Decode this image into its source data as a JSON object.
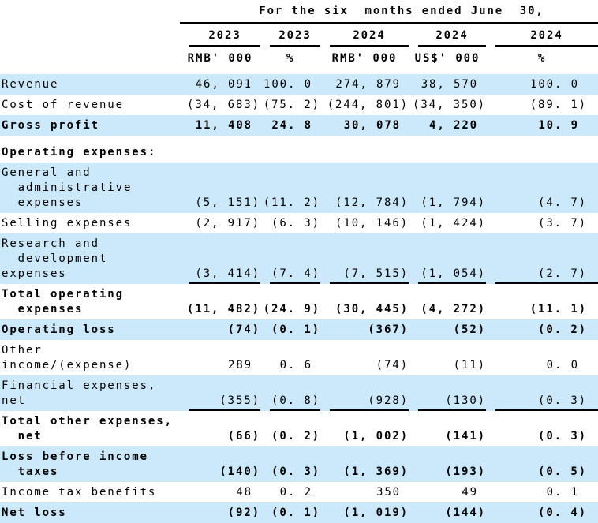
{
  "document": {
    "type": "income-statement-table",
    "colors": {
      "row_highlight": "#cbe9fb",
      "text": "#000000",
      "rule": "#000000"
    }
  },
  "header": {
    "title": "For the six  months ended June  30,",
    "years": [
      "2023",
      "2023",
      "2024",
      "2024",
      "2024"
    ],
    "units": [
      "RMB' 000",
      "%",
      "RMB' 000",
      "US$' 000",
      "%"
    ]
  },
  "table": {
    "rows": [
      {
        "label": "Revenue",
        "values": [
          "46, 091",
          "100. 0",
          "274, 879",
          "38, 570",
          "100. 0"
        ],
        "style": "blue"
      },
      {
        "label": "Cost of revenue",
        "values": [
          "(34, 683)",
          "(75. 2)",
          "(244, 801)",
          "(34, 350)",
          "(89. 1)"
        ],
        "style": "white"
      },
      {
        "label": "Gross profit",
        "values": [
          "11, 408",
          "24. 8",
          "30, 078",
          "4, 220",
          "10. 9"
        ],
        "style": "blue bold"
      },
      {
        "label": "Operating expenses:",
        "values": [
          "",
          "",
          "",
          "",
          ""
        ],
        "style": "white bold gap-top"
      },
      {
        "label": "General and\n  administrative\n  expenses",
        "values": [
          "(5, 151)",
          "(11. 2)",
          "(12, 784)",
          "(1, 794)",
          "(4. 7)"
        ],
        "style": "blue"
      },
      {
        "label": "Selling expenses",
        "values": [
          "(2, 917)",
          "(6. 3)",
          "(10, 146)",
          "(1, 424)",
          "(3. 7)"
        ],
        "style": "white"
      },
      {
        "label": "Research and\n  development expenses",
        "values": [
          "(3, 414)",
          "(7. 4)",
          "(7, 515)",
          "(1, 054)",
          "(2. 7)"
        ],
        "style": "blue underline"
      },
      {
        "label": "Total operating\n  expenses",
        "values": [
          "(11, 482)",
          "(24. 9)",
          "(30, 445)",
          "(4, 272)",
          "(11. 1)"
        ],
        "style": "white bold"
      },
      {
        "label": "Operating loss",
        "values": [
          "(74)",
          "(0. 1)",
          "(367)",
          "(52)",
          "(0. 2)"
        ],
        "style": "blue bold"
      },
      {
        "label": "Other income/(expense)",
        "values": [
          "289",
          "0. 6",
          "(74)",
          "(11)",
          "0. 0"
        ],
        "style": "white"
      },
      {
        "label": "Financial expenses, net",
        "values": [
          "(355)",
          "(0. 8)",
          "(928)",
          "(130)",
          "(0. 3)"
        ],
        "style": "blue underline"
      },
      {
        "label": "Total other expenses,\n  net",
        "values": [
          "(66)",
          "(0. 2)",
          "(1, 002)",
          "(141)",
          "(0. 3)"
        ],
        "style": "white bold"
      },
      {
        "label": "Loss before income\n  taxes",
        "values": [
          "(140)",
          "(0. 3)",
          "(1, 369)",
          "(193)",
          "(0. 5)"
        ],
        "style": "blue bold"
      },
      {
        "label": "Income tax benefits",
        "values": [
          "48",
          "0. 2",
          "350",
          "49",
          "0. 1"
        ],
        "style": "white"
      },
      {
        "label": "Net loss",
        "values": [
          "(92)",
          "(0. 1)",
          "(1, 019)",
          "(144)",
          "(0. 4)"
        ],
        "style": "blue bold"
      }
    ]
  }
}
